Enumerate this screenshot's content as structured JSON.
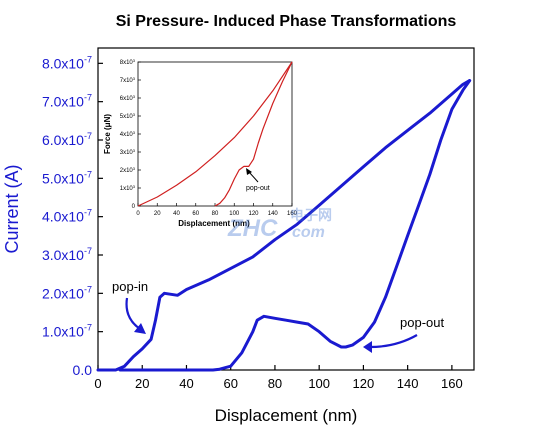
{
  "chart_data": [
    {
      "type": "line",
      "title": "Si Pressure- Induced Phase Transformations",
      "xlabel": "Displacement (nm)",
      "ylabel": "Current (A)",
      "xlim": [
        0,
        170
      ],
      "ylim": [
        0,
        8.4e-07
      ],
      "x_ticks": [
        "0",
        "20",
        "40",
        "60",
        "80",
        "100",
        "120",
        "140",
        "160"
      ],
      "y_tick_mantissas": [
        "0.0",
        "1.0x10",
        "2.0x10",
        "3.0x10",
        "4.0x10",
        "5.0x10",
        "6.0x10",
        "7.0x10",
        "8.0x10"
      ],
      "y_tick_exponent": "-7",
      "color": "#1a1ad0",
      "series": [
        {
          "x": [
            0,
            8,
            12,
            16,
            20,
            24,
            26,
            28,
            30,
            36,
            40,
            50,
            60,
            70,
            80,
            90,
            100,
            110,
            120,
            130,
            140,
            150,
            160,
            165,
            168
          ],
          "y": [
            0,
            0,
            1e-08,
            3.5e-08,
            5.5e-08,
            8e-08,
            1.3e-07,
            1.9e-07,
            2e-07,
            1.95e-07,
            2.1e-07,
            2.35e-07,
            2.65e-07,
            2.95e-07,
            3.4e-07,
            3.8e-07,
            4.3e-07,
            4.8e-07,
            5.3e-07,
            5.8e-07,
            6.25e-07,
            6.7e-07,
            7.2e-07,
            7.45e-07,
            7.55e-07
          ]
        },
        {
          "x": [
            168,
            165,
            160,
            155,
            150,
            145,
            140,
            135,
            130,
            125,
            120,
            115,
            112,
            110,
            105,
            100,
            95,
            90,
            85,
            80,
            75,
            72,
            70,
            65,
            60,
            55,
            52,
            50,
            40,
            20,
            10
          ],
          "y": [
            7.55e-07,
            7.3e-07,
            6.8e-07,
            6e-07,
            5.1e-07,
            4.3e-07,
            3.5e-07,
            2.7e-07,
            1.9e-07,
            1.25e-07,
            8.5e-08,
            6.5e-08,
            6e-08,
            6e-08,
            7.5e-08,
            1e-07,
            1.2e-07,
            1.25e-07,
            1.3e-07,
            1.35e-07,
            1.4e-07,
            1.3e-07,
            1e-07,
            4.5e-08,
            1e-08,
            2e-09,
            0,
            0,
            0,
            0,
            0
          ]
        }
      ],
      "annotations": [
        "pop-in",
        "pop-out"
      ]
    },
    {
      "type": "line",
      "xlabel": "Displacement (nm)",
      "ylabel": "Force (μN)",
      "xlim": [
        0,
        160
      ],
      "ylim": [
        0,
        8000
      ],
      "x_ticks": [
        "0",
        "20",
        "40",
        "60",
        "80",
        "100",
        "120",
        "140",
        "160"
      ],
      "y_tick_mantissas": [
        "0",
        "1x10",
        "2x10",
        "3x10",
        "4x10",
        "5x10",
        "6x10",
        "7x10",
        "8x10"
      ],
      "y_tick_exponent": "3",
      "color": "#d02020",
      "series": [
        {
          "x": [
            0,
            20,
            40,
            60,
            80,
            100,
            120,
            140,
            160
          ],
          "y": [
            0,
            500,
            1150,
            1900,
            2800,
            3800,
            5000,
            6400,
            8000
          ]
        },
        {
          "x": [
            160,
            150,
            140,
            130,
            125,
            120,
            115,
            110,
            105,
            100,
            95,
            90,
            85,
            80
          ],
          "y": [
            8000,
            6900,
            5700,
            4300,
            3500,
            2600,
            2200,
            2200,
            2000,
            1500,
            900,
            450,
            150,
            0
          ]
        }
      ],
      "annotations": [
        "pop-out"
      ]
    }
  ],
  "watermark": {
    "main": "ZHC",
    "cn": "电子网",
    "com": "com"
  }
}
